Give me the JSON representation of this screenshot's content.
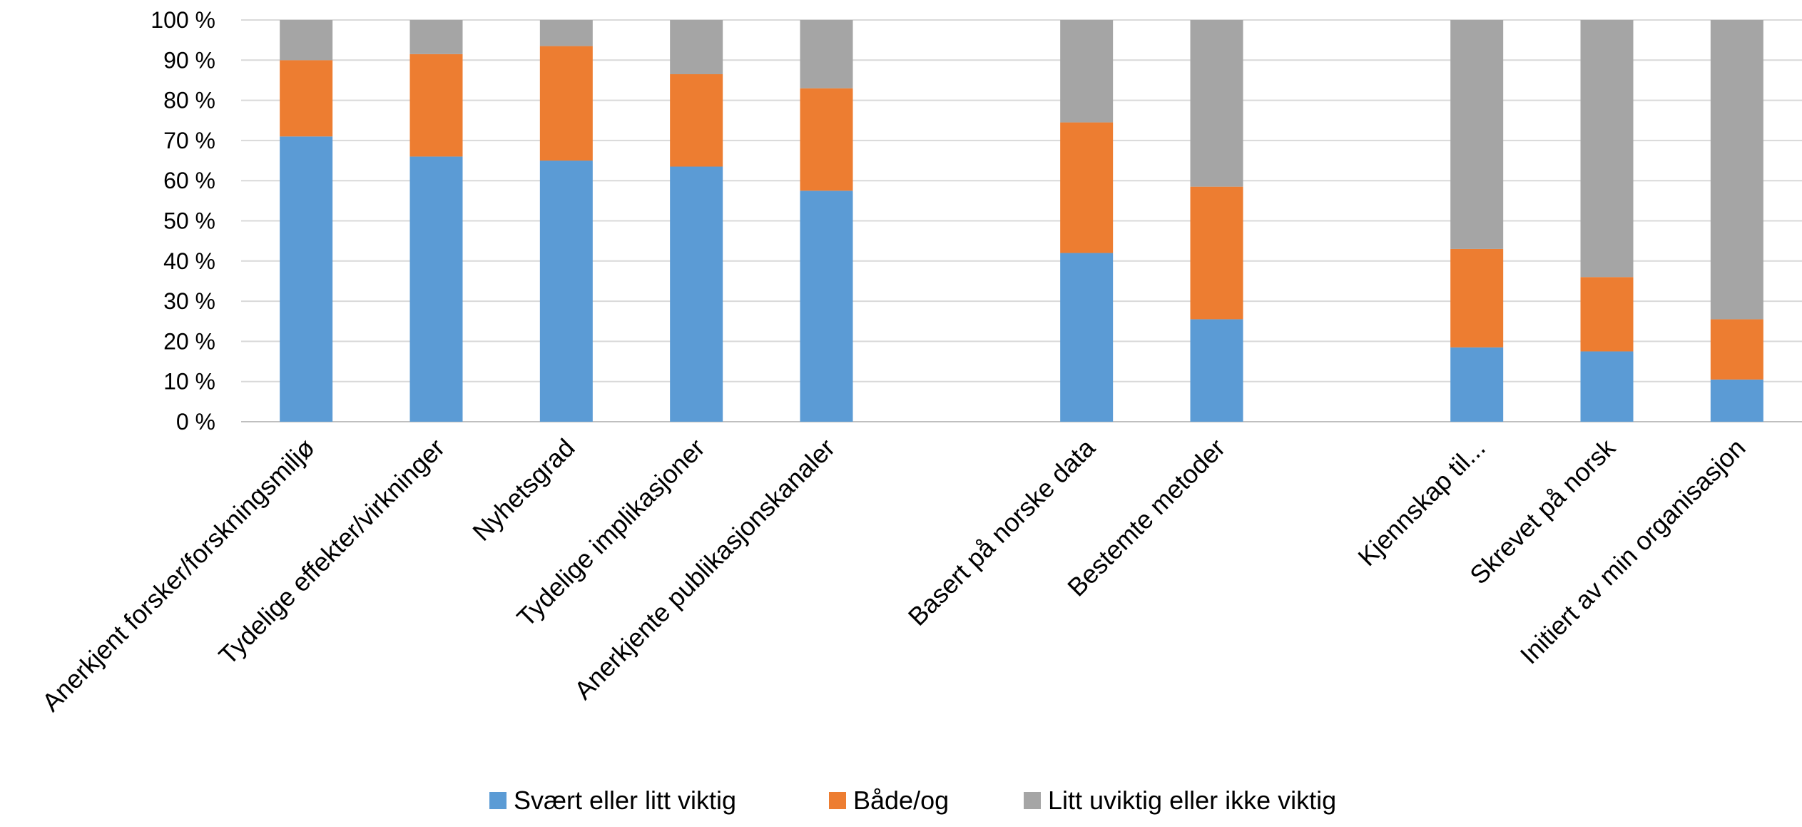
{
  "chart_data": {
    "type": "bar",
    "stacked": true,
    "categories": [
      "Anerkjent forsker/forskningsmiljø",
      "Tydelige effekter/virkninger",
      "Nyhetsgrad",
      "Tydelige implikasjoner",
      "Anerkjente publikasjonskanaler",
      "",
      "Basert på norske data",
      "Bestemte metoder",
      "",
      "Kjennskap til...",
      "Skrevet på norsk",
      "Initiert av min organisasjon"
    ],
    "series": [
      {
        "name": "Svært eller litt viktig",
        "color": "#5B9BD5",
        "values": [
          71,
          66,
          65,
          63.5,
          57.5,
          null,
          42,
          25.5,
          null,
          18.5,
          17.5,
          10.5
        ]
      },
      {
        "name": "Både/og",
        "color": "#ED7D31",
        "values": [
          19,
          25.5,
          28.5,
          23,
          25.5,
          null,
          32.5,
          33,
          null,
          24.5,
          18.5,
          15
        ]
      },
      {
        "name": "Litt uviktig eller ikke viktig",
        "color": "#A5A5A5",
        "values": [
          10,
          8.5,
          6.5,
          13.5,
          17,
          null,
          25.5,
          41.5,
          null,
          57,
          64,
          74.5
        ]
      }
    ],
    "yticks": [
      "0 %",
      "10 %",
      "20 %",
      "30 %",
      "40 %",
      "50 %",
      "60 %",
      "70 %",
      "80 %",
      "90 %",
      "100 %"
    ],
    "ylim": [
      0,
      100
    ],
    "grid": true,
    "gridColor": "#D9D9D9",
    "legend_position": "bottom",
    "title": "",
    "xlabel": "",
    "ylabel": ""
  }
}
